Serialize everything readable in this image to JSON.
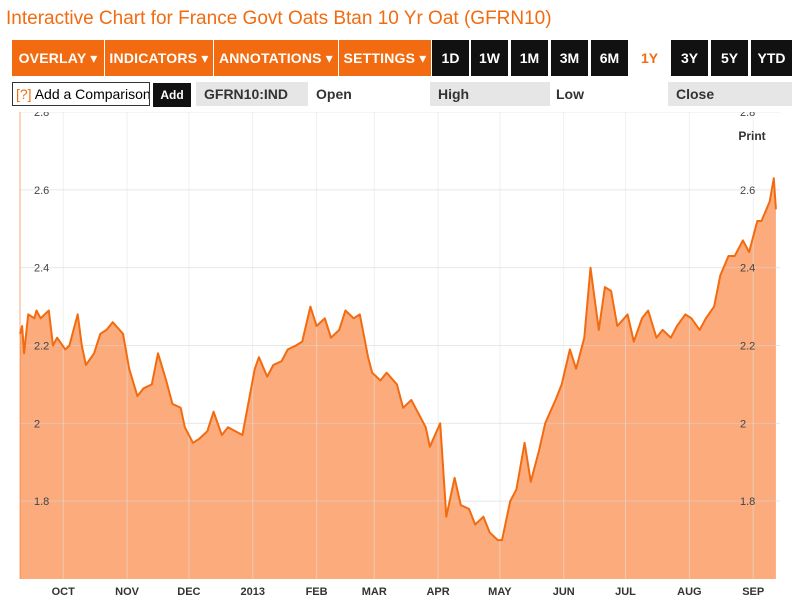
{
  "page_title": "Interactive Chart for France Govt Oats Btan 10 Yr Oat (GFRN10)",
  "toolbar": {
    "menus": [
      "OVERLAY ▾",
      "INDICATORS ▾",
      "ANNOTATIONS ▾",
      "SETTINGS ▾"
    ],
    "ranges": [
      "1D",
      "1W",
      "1M",
      "3M",
      "6M",
      "1Y",
      "3Y",
      "5Y",
      "YTD"
    ],
    "active_range": "1Y"
  },
  "comparison": {
    "qmark": "[?]",
    "input_value": "Add a Comparison",
    "add_label": "Add"
  },
  "quote": {
    "ticker": "GFRN10:IND",
    "open_label": "Open",
    "high_label": "High",
    "low_label": "Low",
    "close_label": "Close"
  },
  "print_label": "Print",
  "colors": {
    "accent": "#f26b10",
    "fill": "#fbab7c",
    "line": "#f26b10"
  },
  "chart_data": {
    "type": "area",
    "title": "",
    "xlabel": "",
    "ylabel": "",
    "ylim": [
      1.6,
      2.8
    ],
    "yticks": [
      1.8,
      2,
      2.2,
      2.4,
      2.6,
      2.8
    ],
    "ytick_labels": [
      "1.8",
      "2",
      "2.2",
      "2.4",
      "2.6",
      "2.8"
    ],
    "x_tick_labels": [
      "OCT",
      "NOV",
      "DEC",
      "2013",
      "FEB",
      "MAR",
      "APR",
      "MAY",
      "JUN",
      "JUL",
      "AUG",
      "SEP"
    ],
    "x_tick_dates": [
      "2012-10-01",
      "2012-11-01",
      "2012-12-01",
      "2013-01-01",
      "2013-02-01",
      "2013-03-01",
      "2013-04-01",
      "2013-05-01",
      "2013-06-01",
      "2013-07-01",
      "2013-08-01",
      "2013-09-01"
    ],
    "xlim": [
      "2012-09-10",
      "2013-09-14"
    ],
    "grid": true,
    "series": [
      {
        "x": [
          "2012-09-10",
          "2012-09-11",
          "2012-09-12",
          "2012-09-14",
          "2012-09-17",
          "2012-09-18",
          "2012-09-20",
          "2012-09-24",
          "2012-09-26",
          "2012-09-28",
          "2012-10-02",
          "2012-10-04",
          "2012-10-08",
          "2012-10-10",
          "2012-10-12",
          "2012-10-16",
          "2012-10-19",
          "2012-10-22",
          "2012-10-25",
          "2012-10-30",
          "2012-11-02",
          "2012-11-06",
          "2012-11-09",
          "2012-11-13",
          "2012-11-16",
          "2012-11-20",
          "2012-11-23",
          "2012-11-27",
          "2012-11-29",
          "2012-12-03",
          "2012-12-06",
          "2012-12-10",
          "2012-12-13",
          "2012-12-17",
          "2012-12-20",
          "2012-12-27",
          "2013-01-02",
          "2013-01-04",
          "2013-01-08",
          "2013-01-11",
          "2013-01-15",
          "2013-01-18",
          "2013-01-22",
          "2013-01-25",
          "2013-01-29",
          "2013-02-01",
          "2013-02-05",
          "2013-02-08",
          "2013-02-12",
          "2013-02-15",
          "2013-02-19",
          "2013-02-22",
          "2013-02-26",
          "2013-02-28",
          "2013-03-04",
          "2013-03-07",
          "2013-03-12",
          "2013-03-15",
          "2013-03-19",
          "2013-03-22",
          "2013-03-26",
          "2013-03-28",
          "2013-04-02",
          "2013-04-04",
          "2013-04-05",
          "2013-04-09",
          "2013-04-12",
          "2013-04-16",
          "2013-04-19",
          "2013-04-23",
          "2013-04-26",
          "2013-04-30",
          "2013-05-02",
          "2013-05-06",
          "2013-05-09",
          "2013-05-13",
          "2013-05-16",
          "2013-05-20",
          "2013-05-23",
          "2013-05-28",
          "2013-05-31",
          "2013-06-04",
          "2013-06-07",
          "2013-06-11",
          "2013-06-14",
          "2013-06-18",
          "2013-06-21",
          "2013-06-24",
          "2013-06-27",
          "2013-07-02",
          "2013-07-05",
          "2013-07-09",
          "2013-07-12",
          "2013-07-16",
          "2013-07-19",
          "2013-07-23",
          "2013-07-26",
          "2013-07-30",
          "2013-08-02",
          "2013-08-06",
          "2013-08-09",
          "2013-08-13",
          "2013-08-16",
          "2013-08-20",
          "2013-08-23",
          "2013-08-27",
          "2013-08-30",
          "2013-09-03",
          "2013-09-05",
          "2013-09-09",
          "2013-09-11",
          "2013-09-12"
        ],
        "values": [
          2.23,
          2.25,
          2.18,
          2.28,
          2.27,
          2.29,
          2.27,
          2.29,
          2.2,
          2.22,
          2.19,
          2.2,
          2.28,
          2.2,
          2.15,
          2.18,
          2.23,
          2.24,
          2.26,
          2.23,
          2.14,
          2.07,
          2.09,
          2.1,
          2.18,
          2.11,
          2.05,
          2.04,
          1.99,
          1.95,
          1.96,
          1.98,
          2.03,
          1.97,
          1.99,
          1.97,
          2.14,
          2.17,
          2.12,
          2.15,
          2.16,
          2.19,
          2.2,
          2.21,
          2.3,
          2.25,
          2.27,
          2.22,
          2.24,
          2.29,
          2.27,
          2.28,
          2.17,
          2.13,
          2.11,
          2.13,
          2.1,
          2.04,
          2.06,
          2.03,
          1.99,
          1.94,
          2.0,
          1.84,
          1.76,
          1.86,
          1.79,
          1.78,
          1.74,
          1.76,
          1.72,
          1.7,
          1.7,
          1.8,
          1.83,
          1.95,
          1.85,
          1.93,
          2.0,
          2.06,
          2.1,
          2.19,
          2.14,
          2.22,
          2.4,
          2.24,
          2.35,
          2.34,
          2.25,
          2.28,
          2.21,
          2.27,
          2.29,
          2.22,
          2.24,
          2.22,
          2.25,
          2.28,
          2.27,
          2.24,
          2.27,
          2.3,
          2.38,
          2.43,
          2.43,
          2.47,
          2.44,
          2.52,
          2.52,
          2.57,
          2.63,
          2.55
        ]
      }
    ]
  }
}
